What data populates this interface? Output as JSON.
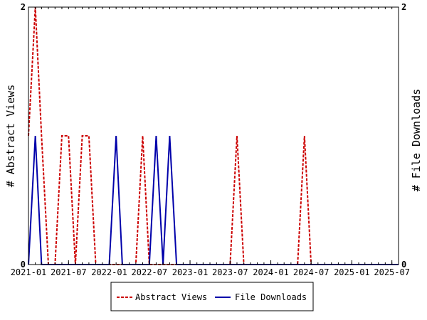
{
  "chart_data": {
    "type": "line",
    "xlabel": "",
    "ylabel_left": "# Abstract Views",
    "ylabel_right": "# File Downloads",
    "x_range": [
      "2021-01-01",
      "2025-07-31"
    ],
    "x_tick_labels": [
      "2021-01",
      "2021-07",
      "2022-01",
      "2022-07",
      "2023-01",
      "2023-07",
      "2024-01",
      "2024-07",
      "2025-01",
      "2025-07"
    ],
    "x_tick_dates": [
      "2021-01-01",
      "2021-07-01",
      "2022-01-01",
      "2022-07-01",
      "2023-01-01",
      "2023-07-01",
      "2024-01-01",
      "2024-07-01",
      "2025-01-01",
      "2025-07-01"
    ],
    "y_left_range": [
      0,
      2
    ],
    "y_right_range": [
      0,
      2
    ],
    "y_left_tick_labels": [
      "0",
      "2"
    ],
    "y_right_tick_labels": [
      "0",
      "2"
    ],
    "grid": false,
    "legend_position": "bottom",
    "series": [
      {
        "name": "Abstract Views",
        "axis": "left",
        "color": "#cc0000",
        "dash": true,
        "points": [
          [
            "2021-01-01",
            1
          ],
          [
            "2021-02-01",
            2
          ],
          [
            "2021-03-01",
            1
          ],
          [
            "2021-04-01",
            0
          ],
          [
            "2021-05-01",
            0
          ],
          [
            "2021-06-01",
            1
          ],
          [
            "2021-07-01",
            1
          ],
          [
            "2021-08-01",
            0
          ],
          [
            "2021-09-01",
            1
          ],
          [
            "2021-10-01",
            1
          ],
          [
            "2021-11-01",
            0
          ],
          [
            "2021-12-01",
            0
          ],
          [
            "2022-01-01",
            0
          ],
          [
            "2022-02-01",
            0
          ],
          [
            "2022-03-01",
            0
          ],
          [
            "2022-04-01",
            0
          ],
          [
            "2022-05-01",
            0
          ],
          [
            "2022-06-01",
            1
          ],
          [
            "2022-07-01",
            0
          ],
          [
            "2022-08-01",
            0
          ],
          [
            "2022-09-01",
            0
          ],
          [
            "2023-07-01",
            0
          ],
          [
            "2023-08-01",
            1
          ],
          [
            "2023-09-01",
            0
          ],
          [
            "2024-05-01",
            0
          ],
          [
            "2024-06-01",
            1
          ],
          [
            "2024-07-01",
            0
          ],
          [
            "2025-07-31",
            0
          ]
        ]
      },
      {
        "name": "File Downloads",
        "axis": "right",
        "color": "#0000aa",
        "dash": false,
        "points": [
          [
            "2021-01-01",
            0
          ],
          [
            "2021-02-01",
            1
          ],
          [
            "2021-03-01",
            0
          ],
          [
            "2022-01-01",
            0
          ],
          [
            "2022-02-01",
            1
          ],
          [
            "2022-03-01",
            0
          ],
          [
            "2022-07-01",
            0
          ],
          [
            "2022-08-01",
            1
          ],
          [
            "2022-09-01",
            0
          ],
          [
            "2022-10-01",
            1
          ],
          [
            "2022-11-01",
            0
          ],
          [
            "2025-07-31",
            0
          ]
        ]
      }
    ]
  }
}
